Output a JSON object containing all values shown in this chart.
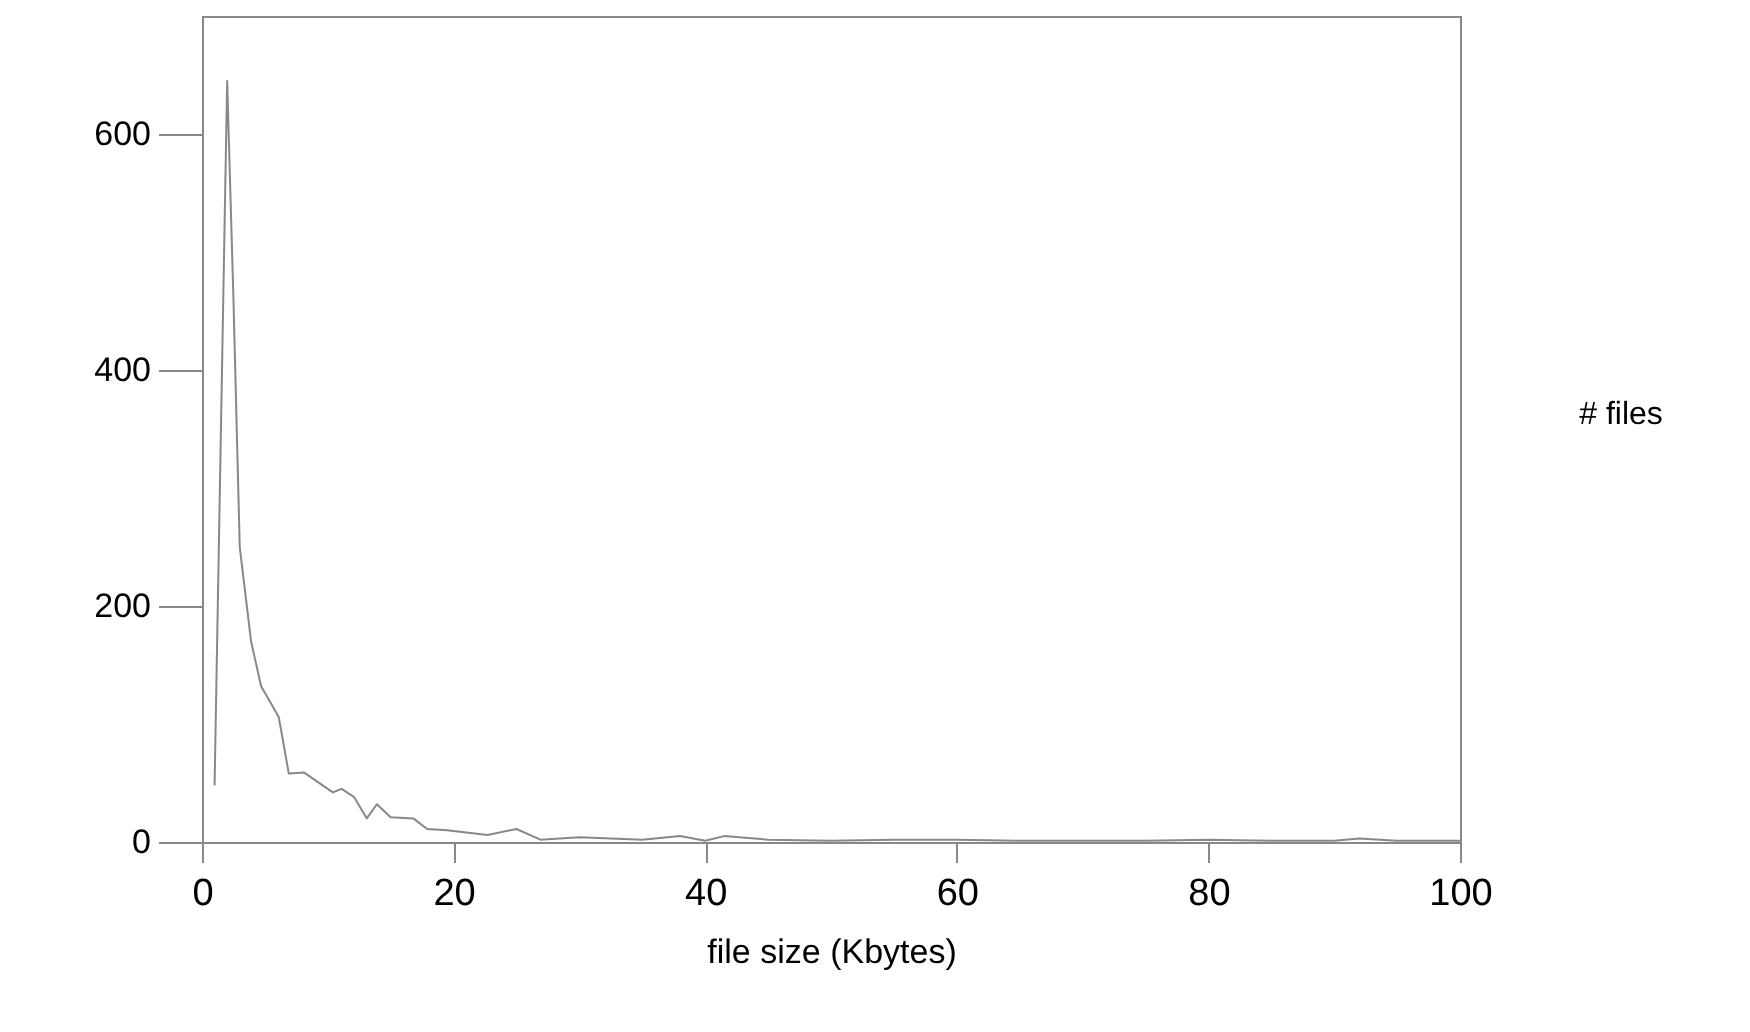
{
  "chart_data": {
    "type": "line",
    "xlabel": "file size (Kbytes)",
    "ylabel": "# files",
    "color": "#888888",
    "x": [
      1,
      2,
      2.5,
      3,
      3.9,
      4.7,
      6.1,
      6.9,
      8.1,
      10.4,
      11.1,
      12.1,
      13.1,
      13.9,
      15,
      16.8,
      17.9,
      19.5,
      22.7,
      25,
      26.9,
      30,
      35,
      38,
      40,
      41.5,
      45,
      50,
      55,
      60,
      65,
      70,
      75,
      80,
      85,
      90,
      92,
      95,
      100
    ],
    "values": [
      48,
      645,
      460,
      250,
      170,
      132,
      106,
      58,
      59,
      42,
      45,
      38,
      20,
      32,
      21,
      20,
      11,
      10,
      6,
      11,
      2,
      4,
      2,
      5,
      1,
      5,
      2,
      1,
      2,
      2,
      1,
      1,
      1,
      2,
      1,
      1,
      3,
      1,
      1
    ],
    "xlim": [
      0,
      100
    ],
    "xticks": [
      0,
      20,
      40,
      60,
      80,
      100
    ],
    "ylim": [
      0,
      700
    ],
    "yticks": [
      0,
      200,
      400,
      600
    ],
    "grid": false,
    "line_style": "solid"
  }
}
